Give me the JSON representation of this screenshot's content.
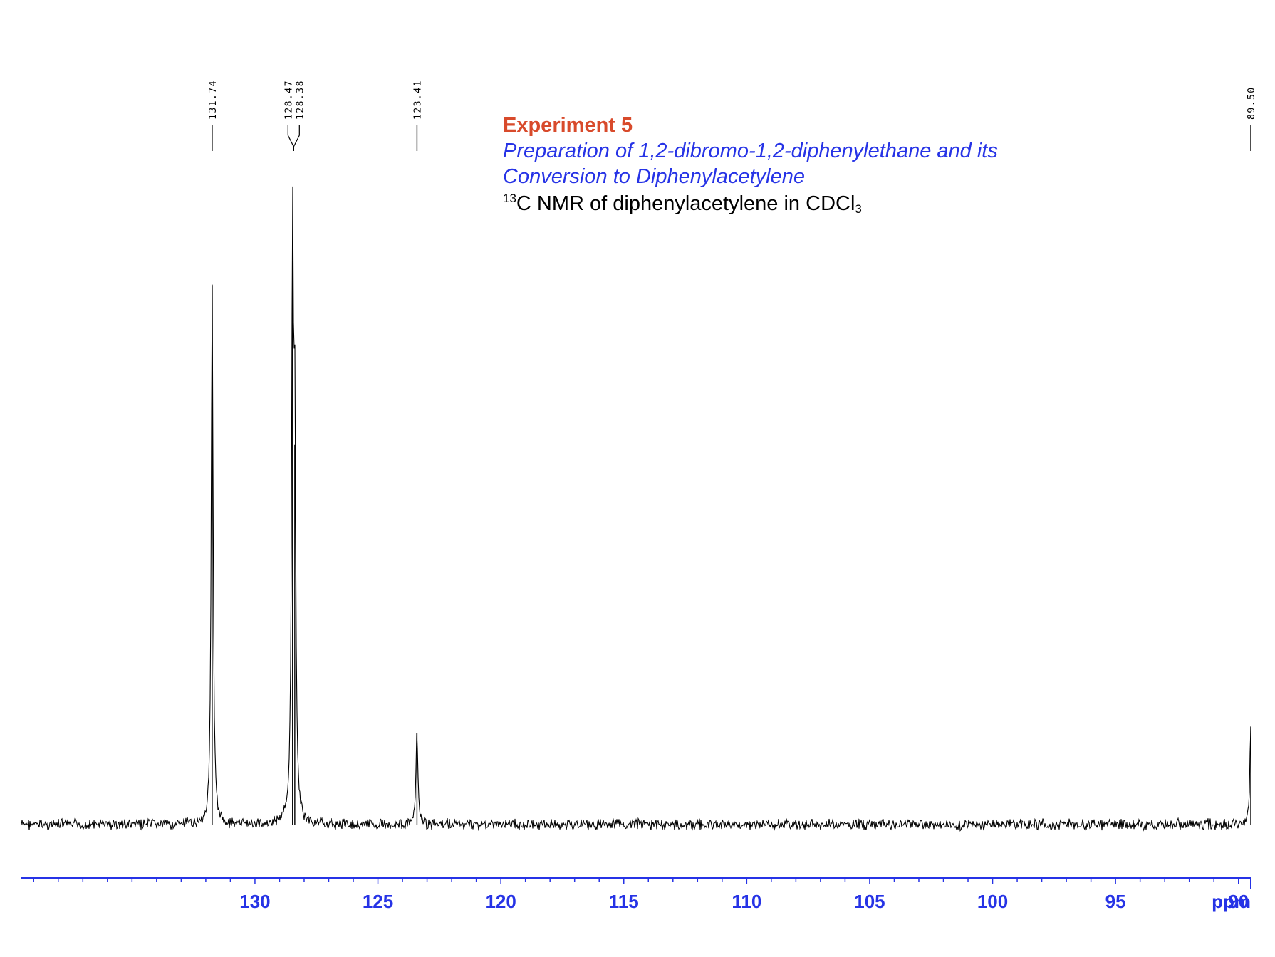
{
  "header": {
    "title": "Experiment 5",
    "subtitle_line1": "Preparation of 1,2-dibromo-1,2-diphenylethane and its",
    "subtitle_line2": "Conversion to Diphenylacetylene",
    "desc_sup": "13",
    "desc_main": "C NMR of diphenylacetylene in CDCl",
    "desc_sub": "3"
  },
  "colors": {
    "title": "#d84a2b",
    "subtitle": "#2633e6",
    "axis": "#2633e6",
    "spectrum": "#000000"
  },
  "chart_data": {
    "type": "line",
    "title": "Experiment 5",
    "xlabel": "ppm",
    "xlim": [
      139.5,
      89.5
    ],
    "x_reversed": true,
    "x_ticks": [
      130,
      125,
      120,
      115,
      110,
      105,
      100,
      95,
      90
    ],
    "x_tick_labels": [
      "130",
      "125",
      "120",
      "115",
      "110",
      "105",
      "100",
      "95",
      "90"
    ],
    "minor_tick_step": 1,
    "grid": false,
    "peaks": [
      {
        "ppm": 131.74,
        "label": "131.74",
        "relative_intensity": 0.88
      },
      {
        "ppm": 128.47,
        "label": "128.47",
        "relative_intensity": 0.92
      },
      {
        "ppm": 128.38,
        "label": "128.38",
        "relative_intensity": 0.62
      },
      {
        "ppm": 123.41,
        "label": "123.41",
        "relative_intensity": 0.15
      },
      {
        "ppm": 89.5,
        "label": "89.50",
        "relative_intensity": 0.16
      }
    ]
  }
}
